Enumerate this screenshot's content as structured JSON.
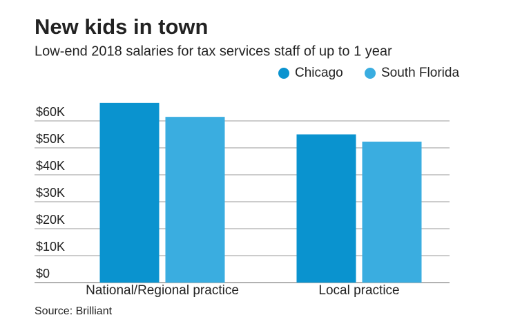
{
  "chart_data": {
    "type": "bar",
    "title": "New kids in town",
    "subtitle": "Low-end 2018 salaries for tax services staff of up to 1 year",
    "source": "Source: Brilliant",
    "categories": [
      "National/Regional practice",
      "Local practice"
    ],
    "series": [
      {
        "name": "Chicago",
        "color": "#0a93cf",
        "values": [
          66700,
          55000
        ]
      },
      {
        "name": "South Florida",
        "color": "#3aade0",
        "values": [
          61500,
          52300
        ]
      }
    ],
    "ylim": [
      0,
      70000
    ],
    "yticks": [
      {
        "value": 0,
        "label": "$0"
      },
      {
        "value": 10000,
        "label": "$10K"
      },
      {
        "value": 20000,
        "label": "$20K"
      },
      {
        "value": 30000,
        "label": "$30K"
      },
      {
        "value": 40000,
        "label": "$40K"
      },
      {
        "value": 50000,
        "label": "$50K"
      },
      {
        "value": 60000,
        "label": "$60K"
      }
    ],
    "grid": true
  }
}
